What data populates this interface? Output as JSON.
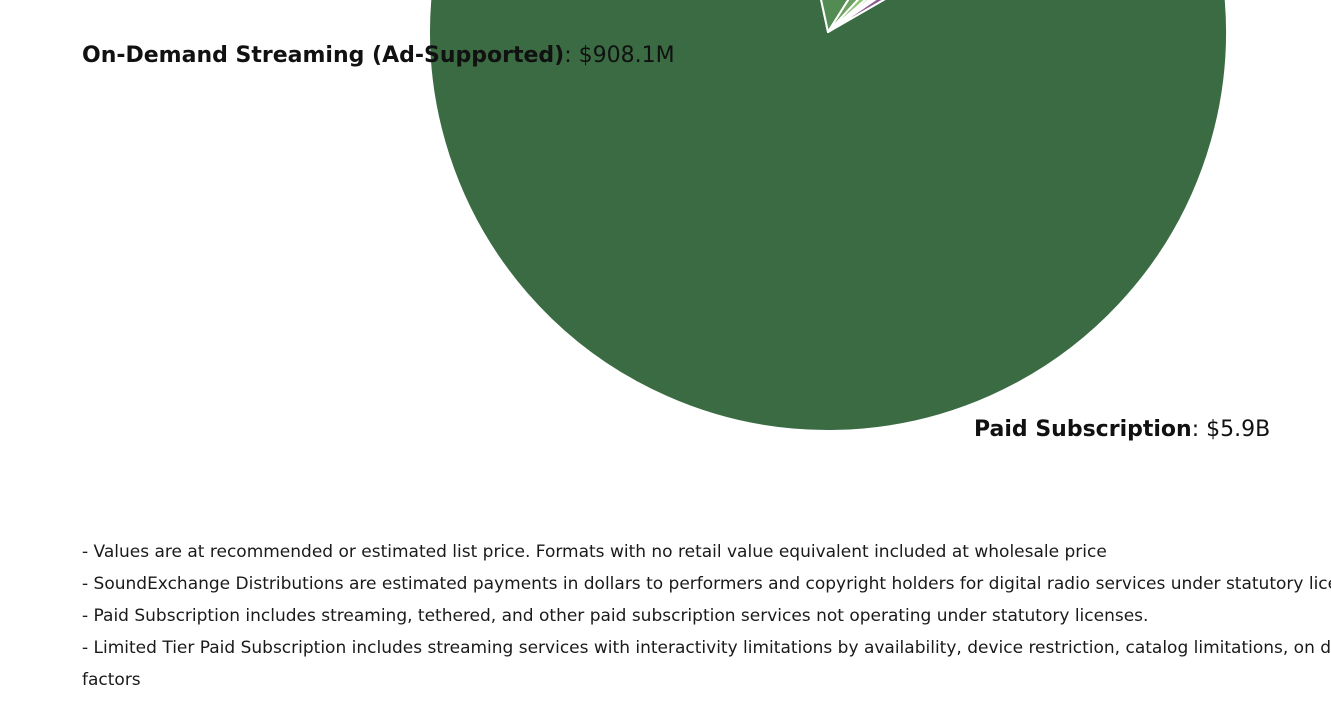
{
  "chart_data": {
    "type": "pie",
    "slices": [
      {
        "name": "Paid Subscription",
        "value_label": "$5.9B",
        "value": 5900,
        "color": "#3a6b43"
      },
      {
        "name": "On-Demand Streaming (Ad-Supported)",
        "value_label": "$908.1M",
        "value": 908.1,
        "color": "#538c53"
      },
      {
        "name": "",
        "value": 220,
        "color": "#6f9f63"
      },
      {
        "name": "",
        "value": 130,
        "color": "#8fc37a"
      },
      {
        "name": "",
        "value": 60,
        "color": "#a7d191"
      },
      {
        "name": "",
        "value": 35,
        "color": "#2d4e7a"
      },
      {
        "name": "",
        "value": 35,
        "color": "#c8642c"
      },
      {
        "name": "",
        "value": 90,
        "color": "#8a5a91"
      }
    ],
    "legend": "none"
  },
  "footnotes": [
    "- Values are at recommended or estimated list price. Formats with no retail value equivalent included at wholesale price",
    "- SoundExchange Distributions are estimated payments in dollars to performers and copyright holders for digital radio services under statutory licenses",
    "- Paid Subscription includes streaming, tethered, and other paid subscription services not operating under statutory licenses.",
    "- Limited Tier Paid Subscription includes streaming services with interactivity limitations by availability, device restriction, catalog limitations, on demand access, or other",
    "factors"
  ]
}
